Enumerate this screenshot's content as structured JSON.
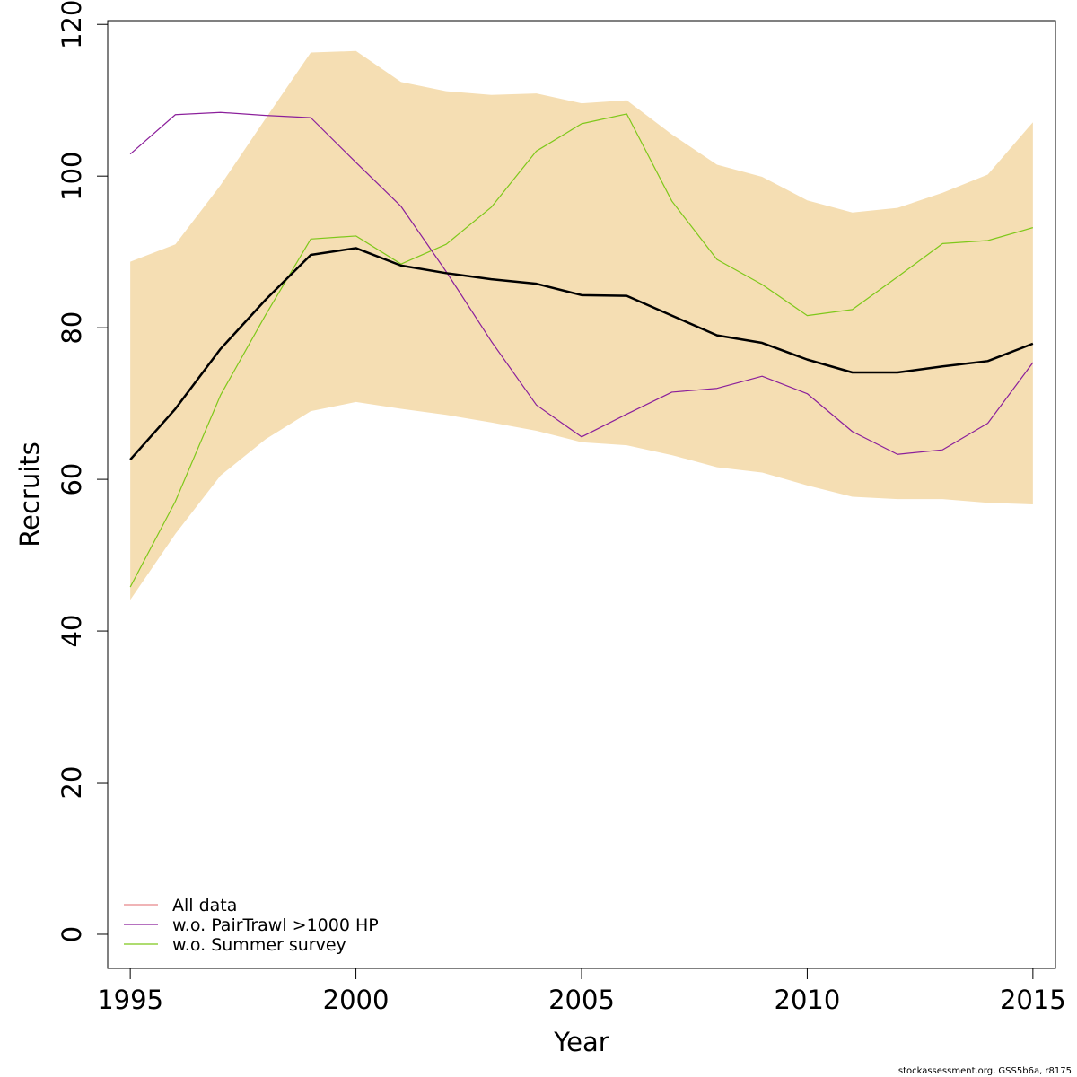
{
  "chart_data": {
    "type": "line",
    "xlabel": "Year",
    "ylabel": "Recruits",
    "xlim": [
      1994.5,
      2015.5
    ],
    "ylim": [
      -4.5,
      120.5
    ],
    "x_ticks": [
      1995,
      2000,
      2005,
      2010,
      2015
    ],
    "x_tick_labels": [
      "1995",
      "2000",
      "2005",
      "2010",
      "2015"
    ],
    "y_ticks": [
      0,
      20,
      40,
      60,
      80,
      100,
      120
    ],
    "y_tick_labels": [
      "0",
      "20",
      "40",
      "60",
      "80",
      "100",
      "120"
    ],
    "grid": false,
    "legend_position": "bottom-left",
    "x": [
      1995,
      1996,
      1997,
      1998,
      1999,
      2000,
      2001,
      2002,
      2003,
      2004,
      2005,
      2006,
      2007,
      2008,
      2009,
      2010,
      2011,
      2012,
      2013,
      2014,
      2015
    ],
    "band": {
      "color": "#f5deb3",
      "upper": [
        88.7,
        91.0,
        98.8,
        107.6,
        116.3,
        116.5,
        112.4,
        111.2,
        110.7,
        110.9,
        109.6,
        110.0,
        105.5,
        101.5,
        99.9,
        96.8,
        95.2,
        95.8,
        97.8,
        100.2,
        107.1
      ],
      "lower": [
        44.1,
        52.8,
        60.5,
        65.3,
        69.0,
        70.2,
        69.3,
        68.5,
        67.5,
        66.4,
        64.9,
        64.5,
        63.2,
        61.6,
        60.9,
        59.2,
        57.7,
        57.4,
        57.4,
        56.9,
        56.7
      ]
    },
    "series": [
      {
        "name": "All data",
        "legend_color": "#e8888a",
        "color": "#000000",
        "values": [
          62.6,
          69.3,
          77.2,
          83.7,
          89.6,
          90.5,
          88.2,
          87.2,
          86.4,
          85.8,
          84.3,
          84.2,
          81.6,
          79.0,
          78.0,
          75.8,
          74.1,
          74.1,
          74.9,
          75.6,
          77.9
        ]
      },
      {
        "name": "w.o. PairTrawl >1000 HP",
        "legend_color": "#8b1f9b",
        "color": "#8b1f9b",
        "values": [
          102.9,
          108.1,
          108.4,
          108.0,
          107.7,
          101.8,
          96.0,
          87.4,
          78.2,
          69.8,
          65.6,
          68.6,
          71.5,
          72.0,
          73.6,
          71.3,
          66.3,
          63.3,
          63.9,
          67.4,
          75.4
        ]
      },
      {
        "name": "w.o. Summer survey",
        "legend_color": "#7ec81a",
        "color": "#7ec81a",
        "values": [
          45.8,
          57.1,
          71.1,
          81.7,
          91.7,
          92.1,
          88.4,
          91.0,
          95.9,
          103.3,
          106.9,
          108.2,
          96.7,
          89.0,
          85.7,
          81.6,
          82.4,
          86.7,
          91.1,
          91.5,
          93.2
        ]
      }
    ]
  },
  "credit": "stockassessment.org, GSS5b6a, r8175"
}
